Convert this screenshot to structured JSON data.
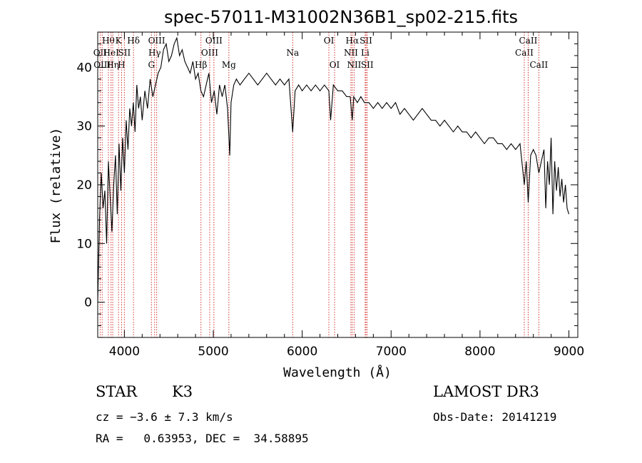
{
  "chart_data": {
    "type": "line",
    "title": "spec-57011-M31002N36B1_sp02-215.fits",
    "xlabel": "Wavelength (Å)",
    "ylabel": "Flux (relative)",
    "xlim": [
      3700,
      9100
    ],
    "ylim": [
      -6,
      46
    ],
    "xticks": [
      4000,
      5000,
      6000,
      7000,
      8000,
      9000
    ],
    "yticks": [
      0,
      10,
      20,
      30,
      40
    ],
    "series": [
      {
        "name": "flux",
        "x": [
          3700,
          3720,
          3740,
          3760,
          3780,
          3800,
          3820,
          3840,
          3860,
          3880,
          3900,
          3920,
          3940,
          3960,
          3980,
          4000,
          4020,
          4040,
          4060,
          4080,
          4100,
          4120,
          4140,
          4160,
          4180,
          4200,
          4230,
          4260,
          4290,
          4320,
          4350,
          4380,
          4410,
          4440,
          4470,
          4500,
          4530,
          4560,
          4590,
          4620,
          4650,
          4680,
          4710,
          4740,
          4770,
          4800,
          4830,
          4860,
          4890,
          4920,
          4950,
          4980,
          5010,
          5040,
          5070,
          5100,
          5130,
          5160,
          5185,
          5200,
          5230,
          5260,
          5300,
          5350,
          5400,
          5450,
          5500,
          5550,
          5600,
          5650,
          5700,
          5750,
          5800,
          5850,
          5893,
          5920,
          5960,
          6000,
          6050,
          6100,
          6150,
          6200,
          6250,
          6300,
          6320,
          6350,
          6400,
          6450,
          6500,
          6540,
          6563,
          6580,
          6620,
          6660,
          6700,
          6750,
          6800,
          6850,
          6900,
          6950,
          7000,
          7050,
          7100,
          7150,
          7200,
          7250,
          7300,
          7350,
          7400,
          7450,
          7500,
          7550,
          7600,
          7650,
          7700,
          7750,
          7800,
          7850,
          7900,
          7950,
          8000,
          8050,
          8100,
          8150,
          8200,
          8250,
          8300,
          8350,
          8400,
          8450,
          8498,
          8520,
          8542,
          8570,
          8600,
          8630,
          8662,
          8690,
          8720,
          8740,
          8760,
          8780,
          8800,
          8820,
          8840,
          8860,
          8880,
          8900,
          8920,
          8940,
          8960,
          8980,
          9000
        ],
        "values": [
          0,
          14,
          22,
          16,
          19,
          10,
          24,
          18,
          12,
          20,
          25,
          15,
          27,
          19,
          28,
          22,
          31,
          26,
          33,
          30,
          34,
          29,
          37,
          33,
          35,
          31,
          36,
          33,
          38,
          35,
          37,
          39,
          40,
          43,
          44,
          41,
          42,
          44,
          45,
          42,
          43,
          41,
          40,
          39,
          41,
          38,
          39,
          36,
          35,
          37,
          39,
          34,
          36,
          32,
          37,
          35,
          37,
          33,
          25,
          34,
          37,
          38,
          37,
          38,
          39,
          38,
          37,
          38,
          39,
          38,
          37,
          38,
          37,
          38,
          29,
          36,
          37,
          36,
          37,
          36,
          37,
          36,
          37,
          36,
          31,
          37,
          36,
          36,
          35,
          35,
          31,
          35,
          34,
          35,
          34,
          34,
          33,
          34,
          33,
          34,
          33,
          34,
          32,
          33,
          32,
          31,
          32,
          33,
          32,
          31,
          31,
          30,
          31,
          30,
          29,
          30,
          29,
          29,
          28,
          29,
          28,
          27,
          28,
          28,
          27,
          27,
          26,
          27,
          26,
          27,
          20,
          24,
          17,
          25,
          26,
          25,
          22,
          24,
          26,
          16,
          24,
          20,
          28,
          15,
          24,
          19,
          23,
          18,
          21,
          17,
          20,
          16,
          15
        ]
      }
    ],
    "line_markers": [
      {
        "wl": 3727,
        "label": "OII",
        "row": 1
      },
      {
        "wl": 3750,
        "label": "OIII",
        "row": 2
      },
      {
        "wl": 3820,
        "label": "Hθ",
        "row": 0
      },
      {
        "wl": 3850,
        "label": "HeI",
        "row": 1
      },
      {
        "wl": 3869,
        "label": "Hη",
        "row": 2
      },
      {
        "wl": 3934,
        "label": "K",
        "row": 0
      },
      {
        "wl": 3968,
        "label": "H",
        "row": 2
      },
      {
        "wl": 4000,
        "label": "SII",
        "row": 1
      },
      {
        "wl": 4102,
        "label": "Hδ",
        "row": 0
      },
      {
        "wl": 4304,
        "label": "G",
        "row": 2
      },
      {
        "wl": 4340,
        "label": "Hγ",
        "row": 1
      },
      {
        "wl": 4363,
        "label": "OIII",
        "row": 0
      },
      {
        "wl": 4861,
        "label": "Hβ",
        "row": 2
      },
      {
        "wl": 4959,
        "label": "OIII",
        "row": 1
      },
      {
        "wl": 5007,
        "label": "OIII",
        "row": 0
      },
      {
        "wl": 5175,
        "label": "Mg",
        "row": 2
      },
      {
        "wl": 5893,
        "label": "Na",
        "row": 1
      },
      {
        "wl": 6300,
        "label": "OI",
        "row": 0
      },
      {
        "wl": 6364,
        "label": "OI",
        "row": 2
      },
      {
        "wl": 6548,
        "label": "NII",
        "row": 1
      },
      {
        "wl": 6563,
        "label": "Hα",
        "row": 0
      },
      {
        "wl": 6584,
        "label": "NII",
        "row": 2
      },
      {
        "wl": 6708,
        "label": "Li",
        "row": 1
      },
      {
        "wl": 6717,
        "label": "SII",
        "row": 0
      },
      {
        "wl": 6731,
        "label": "SII",
        "row": 2
      },
      {
        "wl": 8498,
        "label": "CaII",
        "row": 1
      },
      {
        "wl": 8542,
        "label": "CaII",
        "row": 0
      },
      {
        "wl": 8662,
        "label": "CaII",
        "row": 2
      }
    ]
  },
  "info": {
    "class": "STAR",
    "subclass": "K3",
    "survey": "LAMOST DR3",
    "cz": "cz = −3.6 ± 7.3 km/s",
    "obs_date": "Obs-Date: 20141219",
    "radec": "RA =   0.63953, DEC =  34.58895"
  }
}
